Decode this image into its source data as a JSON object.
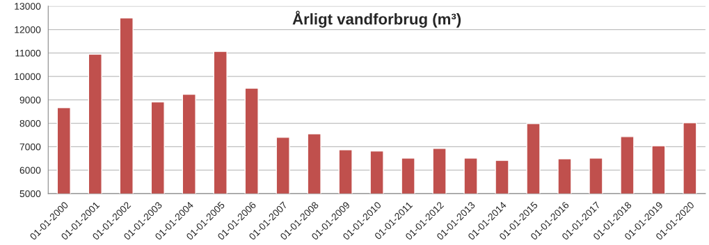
{
  "chart_data": {
    "type": "bar",
    "title": "Årligt vandforbrug (m³)",
    "categories": [
      "01-01-2000",
      "01-01-2001",
      "01-01-2002",
      "01-01-2003",
      "01-01-2004",
      "01-01-2005",
      "01-01-2006",
      "01-01-2007",
      "01-01-2008",
      "01-01-2009",
      "01-01-2010",
      "01-01-2011",
      "01-01-2012",
      "01-01-2013",
      "01-01-2014",
      "01-01-2015",
      "01-01-2016",
      "01-01-2017",
      "01-01-2018",
      "01-01-2019",
      "01-01-2020"
    ],
    "values": [
      8670,
      10950,
      12500,
      8910,
      9240,
      11070,
      9500,
      7400,
      7550,
      6870,
      6820,
      6510,
      6930,
      6510,
      6420,
      7990,
      6480,
      6510,
      7430,
      7040,
      8020
    ],
    "color": "#c0504d",
    "ylim": [
      5000,
      13000
    ],
    "yticks": [
      5000,
      6000,
      7000,
      8000,
      9000,
      10000,
      11000,
      12000,
      13000
    ],
    "grid": "y"
  }
}
